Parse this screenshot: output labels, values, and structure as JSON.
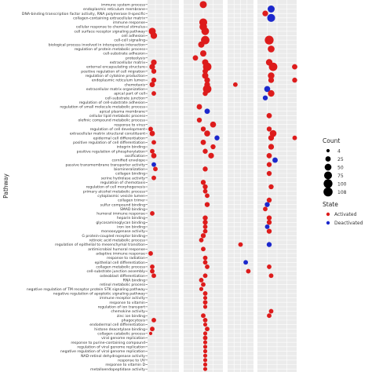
{
  "chart_data": {
    "type": "scatter",
    "ylabel": "Pathway",
    "xlabel": "",
    "grid": true,
    "legend_position": "right",
    "panels": 4,
    "pathways": [
      "immune system process",
      "endoplasmic reticulum membrane",
      "DNA-binding transcription factor activity, RNA polymerase II-specific",
      "collagen-containing extracellular matrix",
      "immune response",
      "cellular response to chemical stimulus",
      "cell surface receptor signaling pathway",
      "cell adhesion",
      "cell-cell signaling",
      "biological process involved in interspecies interaction",
      "regulation of protein metabolic process",
      "cell-substrate adhesion",
      "proteolysis",
      "extracellular matrix",
      "external encapsulating structure",
      "positive regulation of cell migration",
      "regulation of cytokine production",
      "endoplasmic reticulum lumen",
      "chemotaxis",
      "extracellular matrix organization",
      "apical part of cell",
      "cell-substrate junction",
      "regulation of cell-substrate adhesion",
      "regulation of small molecule metabolic process",
      "apical plasma membrane",
      "cellular lipid metabolic process",
      "olefinic compound metabolic process",
      "response to virus",
      "regulation of cell development",
      "extracellular matrix structural constituent",
      "epidermal cell differentiation",
      "positive regulation of cell differentiation",
      "integrin binding",
      "positive regulation of phosphorylation",
      "ossification",
      "cornified envelope",
      "passive transmembrane transporter activity",
      "biomineralization",
      "collagen binding",
      "serine hydrolase activity",
      "regulation of chemotaxis",
      "regulation of cell morphogenesis",
      "primary alcohol metabolic process",
      "cytoplasmic vesicle lumen",
      "collagen trimer",
      "sulfur compound binding",
      "SMAD binding",
      "humoral immune response",
      "heparin binding",
      "glycosaminoglycan binding",
      "iron ion binding",
      "monooxygenase activity",
      "G protein-coupled receptor binding",
      "retinoic acid metabolic process",
      "regulation of epithelial to mesenchymal transition",
      "antimicrobial humoral response",
      "adaptive immune response",
      "response to radiation",
      "epithelial cell differentiation",
      "collagen metabolic process",
      "cell-substrate junction assembly",
      "osteoblast differentiation",
      "RNA binding",
      "retinol metabolic process",
      "negative regulation of TM receptor protein STK signaling pathway",
      "negative regulation of apoptotic signaling pathway",
      "immune receptor activity",
      "response to vitamin",
      "regulation of ion transport",
      "chemokine activity",
      "zinc ion binding",
      "phagocytosis",
      "endodermal cell differentiation",
      "histone deacetylase binding",
      "collagen catabolic process",
      "viral genome replication",
      "response to purine-containing compound",
      "regulation of viral genome replication",
      "negative regulation of viral genome replication",
      "NAD-retinol dehydrogenase activity",
      "response to UV",
      "response to vitamin D",
      "metalloendopeptidase activity"
    ],
    "legend": {
      "count_title": "Count",
      "count_labels": [
        "4",
        "25",
        "50",
        "75",
        "100",
        "108"
      ],
      "count_values": [
        4,
        25,
        50,
        75,
        100,
        108
      ],
      "state_title": "State",
      "state_labels": [
        "Activated",
        "Deactivated"
      ]
    },
    "colors": {
      "Activated": "#dd1c1c",
      "Deactivated": "#1c28cc"
    },
    "points": [
      {
        "row": 0,
        "panel": 1,
        "x": 0.5,
        "count": 55,
        "state": "Activated"
      },
      {
        "row": 1,
        "panel": 3,
        "x": 0.35,
        "count": 55,
        "state": "Deactivated"
      },
      {
        "row": 2,
        "panel": 3,
        "x": 0.2,
        "count": 30,
        "state": "Activated"
      },
      {
        "row": 3,
        "panel": 3,
        "x": 0.35,
        "count": 75,
        "state": "Deactivated"
      },
      {
        "row": 4,
        "panel": 1,
        "x": 0.5,
        "count": 75,
        "state": "Activated"
      },
      {
        "row": 5,
        "panel": 1,
        "x": 0.5,
        "count": 65,
        "state": "Activated"
      },
      {
        "row": 6,
        "panel": 0,
        "x": 0.15,
        "count": 55,
        "state": "Activated"
      },
      {
        "row": 6,
        "panel": 1,
        "x": 0.55,
        "count": 70,
        "state": "Activated"
      },
      {
        "row": 7,
        "panel": 0,
        "x": 0.2,
        "count": 45,
        "state": "Activated"
      },
      {
        "row": 8,
        "panel": 1,
        "x": 0.55,
        "count": 90,
        "state": "Activated"
      },
      {
        "row": 8,
        "panel": 3,
        "x": 0.3,
        "count": 100,
        "state": "Activated"
      },
      {
        "row": 9,
        "panel": 1,
        "x": 0.45,
        "count": 40,
        "state": "Activated"
      },
      {
        "row": 10,
        "panel": 3,
        "x": 0.35,
        "count": 50,
        "state": "Activated"
      },
      {
        "row": 11,
        "panel": 1,
        "x": 0.5,
        "count": 40,
        "state": "Activated"
      },
      {
        "row": 12,
        "panel": 1,
        "x": 0.3,
        "count": 25,
        "state": "Activated"
      },
      {
        "row": 13,
        "panel": 0,
        "x": 0.2,
        "count": 30,
        "state": "Activated"
      },
      {
        "row": 13,
        "panel": 1,
        "x": 0.55,
        "count": 40,
        "state": "Activated"
      },
      {
        "row": 13,
        "panel": 3,
        "x": 0.3,
        "count": 45,
        "state": "Activated"
      },
      {
        "row": 14,
        "panel": 0,
        "x": 0.15,
        "count": 30,
        "state": "Activated"
      },
      {
        "row": 14,
        "panel": 1,
        "x": 0.6,
        "count": 90,
        "state": "Activated"
      },
      {
        "row": 14,
        "panel": 3,
        "x": 0.4,
        "count": 90,
        "state": "Activated"
      },
      {
        "row": 14,
        "panel": 3,
        "x": 0.95,
        "count": 25,
        "state": "Activated"
      },
      {
        "row": 15,
        "panel": 0,
        "x": 0.2,
        "count": 20,
        "state": "Activated"
      },
      {
        "row": 15,
        "panel": 1,
        "x": 0.55,
        "count": 25,
        "state": "Activated"
      },
      {
        "row": 16,
        "panel": 1,
        "x": 0.55,
        "count": 40,
        "state": "Activated"
      },
      {
        "row": 16,
        "panel": 3,
        "x": 0.35,
        "count": 45,
        "state": "Activated"
      },
      {
        "row": 17,
        "panel": 0,
        "x": 0.2,
        "count": 20,
        "state": "Activated"
      },
      {
        "row": 17,
        "panel": 1,
        "x": 0.6,
        "count": 30,
        "state": "Activated"
      },
      {
        "row": 17,
        "panel": 3,
        "x": 0.35,
        "count": 30,
        "state": "Activated"
      },
      {
        "row": 17,
        "panel": 3,
        "x": 0.95,
        "count": 20,
        "state": "Activated"
      },
      {
        "row": 18,
        "panel": 0,
        "x": 0.15,
        "count": 25,
        "state": "Activated"
      },
      {
        "row": 18,
        "panel": 1,
        "x": 0.6,
        "count": 30,
        "state": "Activated"
      },
      {
        "row": 18,
        "panel": 2,
        "x": 0.3,
        "count": 15,
        "state": "Activated"
      },
      {
        "row": 19,
        "panel": 1,
        "x": 0.6,
        "count": 90,
        "state": "Activated"
      },
      {
        "row": 19,
        "panel": 3,
        "x": 0.25,
        "count": 35,
        "state": "Deactivated"
      },
      {
        "row": 20,
        "panel": 0,
        "x": 0.2,
        "count": 15,
        "state": "Activated"
      },
      {
        "row": 20,
        "panel": 1,
        "x": 0.55,
        "count": 20,
        "state": "Activated"
      },
      {
        "row": 20,
        "panel": 3,
        "x": 0.35,
        "count": 45,
        "state": "Activated"
      },
      {
        "row": 21,
        "panel": 3,
        "x": 0.2,
        "count": 20,
        "state": "Deactivated"
      },
      {
        "row": 23,
        "panel": 1,
        "x": 0.4,
        "count": 25,
        "state": "Activated"
      },
      {
        "row": 24,
        "panel": 1,
        "x": 0.6,
        "count": 25,
        "state": "Deactivated"
      },
      {
        "row": 25,
        "panel": 3,
        "x": 0.3,
        "count": 25,
        "state": "Activated"
      },
      {
        "row": 26,
        "panel": 1,
        "x": 0.4,
        "count": 20,
        "state": "Activated"
      },
      {
        "row": 27,
        "panel": 1,
        "x": 0.75,
        "count": 35,
        "state": "Activated"
      },
      {
        "row": 28,
        "panel": 0,
        "x": 0.1,
        "count": 15,
        "state": "Activated"
      },
      {
        "row": 28,
        "panel": 1,
        "x": 0.5,
        "count": 20,
        "state": "Activated"
      },
      {
        "row": 28,
        "panel": 3,
        "x": 0.3,
        "count": 20,
        "state": "Activated"
      },
      {
        "row": 29,
        "panel": 0,
        "x": 0.15,
        "count": 25,
        "state": "Activated"
      },
      {
        "row": 29,
        "panel": 1,
        "x": 0.6,
        "count": 35,
        "state": "Activated"
      },
      {
        "row": 29,
        "panel": 3,
        "x": 0.4,
        "count": 50,
        "state": "Activated"
      },
      {
        "row": 30,
        "panel": 1,
        "x": 0.85,
        "count": 20,
        "state": "Deactivated"
      },
      {
        "row": 30,
        "panel": 3,
        "x": 0.35,
        "count": 30,
        "state": "Activated"
      },
      {
        "row": 30,
        "panel": 3,
        "x": 0.95,
        "count": 15,
        "state": "Activated"
      },
      {
        "row": 31,
        "panel": 0,
        "x": 0.2,
        "count": 15,
        "state": "Activated"
      },
      {
        "row": 31,
        "panel": 1,
        "x": 0.5,
        "count": 25,
        "state": "Activated"
      },
      {
        "row": 32,
        "panel": 1,
        "x": 0.75,
        "count": 20,
        "state": "Activated"
      },
      {
        "row": 32,
        "panel": 3,
        "x": 0.35,
        "count": 30,
        "state": "Activated"
      },
      {
        "row": 33,
        "panel": 0,
        "x": 0.15,
        "count": 15,
        "state": "Activated"
      },
      {
        "row": 33,
        "panel": 1,
        "x": 0.55,
        "count": 20,
        "state": "Activated"
      },
      {
        "row": 34,
        "panel": 0,
        "x": 0.2,
        "count": 25,
        "state": "Activated"
      },
      {
        "row": 34,
        "panel": 1,
        "x": 0.7,
        "count": 30,
        "state": "Activated"
      },
      {
        "row": 34,
        "panel": 3,
        "x": 0.3,
        "count": 25,
        "state": "Activated"
      },
      {
        "row": 35,
        "panel": 3,
        "x": 0.45,
        "count": 25,
        "state": "Deactivated"
      },
      {
        "row": 36,
        "panel": 0,
        "x": 0.2,
        "count": 15,
        "state": "Deactivated"
      },
      {
        "row": 36,
        "panel": 3,
        "x": 0.3,
        "count": 20,
        "state": "Activated"
      },
      {
        "row": 37,
        "panel": 0,
        "x": 0.25,
        "count": 15,
        "state": "Activated"
      },
      {
        "row": 37,
        "panel": 1,
        "x": 0.55,
        "count": 20,
        "state": "Activated"
      },
      {
        "row": 38,
        "panel": 3,
        "x": 0.3,
        "count": 20,
        "state": "Activated"
      },
      {
        "row": 39,
        "panel": 0,
        "x": 0.2,
        "count": 15,
        "state": "Activated"
      },
      {
        "row": 40,
        "panel": 1,
        "x": 0.5,
        "count": 20,
        "state": "Activated"
      },
      {
        "row": 41,
        "panel": 1,
        "x": 0.55,
        "count": 20,
        "state": "Activated"
      },
      {
        "row": 41,
        "panel": 3,
        "x": 0.35,
        "count": 20,
        "state": "Activated"
      },
      {
        "row": 42,
        "panel": 1,
        "x": 0.55,
        "count": 15,
        "state": "Activated"
      },
      {
        "row": 43,
        "panel": 1,
        "x": 0.6,
        "count": 15,
        "state": "Activated"
      },
      {
        "row": 44,
        "panel": 3,
        "x": 0.3,
        "count": 20,
        "state": "Activated"
      },
      {
        "row": 45,
        "panel": 1,
        "x": 0.6,
        "count": 20,
        "state": "Activated"
      },
      {
        "row": 45,
        "panel": 3,
        "x": 0.25,
        "count": 20,
        "state": "Deactivated"
      },
      {
        "row": 46,
        "panel": 3,
        "x": 0.2,
        "count": 15,
        "state": "Activated"
      },
      {
        "row": 47,
        "panel": 0,
        "x": 0.15,
        "count": 15,
        "state": "Activated"
      },
      {
        "row": 48,
        "panel": 1,
        "x": 0.55,
        "count": 20,
        "state": "Activated"
      },
      {
        "row": 48,
        "panel": 3,
        "x": 0.3,
        "count": 20,
        "state": "Activated"
      },
      {
        "row": 49,
        "panel": 1,
        "x": 0.55,
        "count": 20,
        "state": "Activated"
      },
      {
        "row": 49,
        "panel": 3,
        "x": 0.3,
        "count": 20,
        "state": "Activated"
      },
      {
        "row": 50,
        "panel": 1,
        "x": 0.55,
        "count": 15,
        "state": "Activated"
      },
      {
        "row": 50,
        "panel": 3,
        "x": 0.25,
        "count": 15,
        "state": "Deactivated"
      },
      {
        "row": 51,
        "panel": 1,
        "x": 0.55,
        "count": 15,
        "state": "Activated"
      },
      {
        "row": 51,
        "panel": 3,
        "x": 0.3,
        "count": 20,
        "state": "Activated"
      },
      {
        "row": 52,
        "panel": 1,
        "x": 0.5,
        "count": 20,
        "state": "Activated"
      },
      {
        "row": 53,
        "panel": 1,
        "x": 0.45,
        "count": 15,
        "state": "Activated"
      },
      {
        "row": 54,
        "panel": 2,
        "x": 0.5,
        "count": 15,
        "state": "Activated"
      },
      {
        "row": 54,
        "panel": 3,
        "x": 0.3,
        "count": 20,
        "state": "Deactivated"
      },
      {
        "row": 55,
        "panel": 1,
        "x": 0.5,
        "count": 15,
        "state": "Activated"
      },
      {
        "row": 56,
        "panel": 0,
        "x": 0.1,
        "count": 15,
        "state": "Activated"
      },
      {
        "row": 57,
        "panel": 1,
        "x": 0.55,
        "count": 15,
        "state": "Activated"
      },
      {
        "row": 58,
        "panel": 1,
        "x": 0.55,
        "count": 15,
        "state": "Activated"
      },
      {
        "row": 58,
        "panel": 2,
        "x": 0.7,
        "count": 15,
        "state": "Deactivated"
      },
      {
        "row": 59,
        "panel": 0,
        "x": 0.15,
        "count": 15,
        "state": "Activated"
      },
      {
        "row": 59,
        "panel": 1,
        "x": 0.6,
        "count": 15,
        "state": "Activated"
      },
      {
        "row": 59,
        "panel": 3,
        "x": 0.3,
        "count": 15,
        "state": "Activated"
      },
      {
        "row": 60,
        "panel": 0,
        "x": 0.15,
        "count": 15,
        "state": "Activated"
      },
      {
        "row": 60,
        "panel": 2,
        "x": 0.8,
        "count": 15,
        "state": "Activated"
      },
      {
        "row": 61,
        "panel": 0,
        "x": 0.2,
        "count": 15,
        "state": "Activated"
      },
      {
        "row": 61,
        "panel": 1,
        "x": 0.55,
        "count": 15,
        "state": "Activated"
      },
      {
        "row": 61,
        "panel": 3,
        "x": 0.35,
        "count": 15,
        "state": "Activated"
      },
      {
        "row": 62,
        "panel": 1,
        "x": 0.45,
        "count": 15,
        "state": "Activated"
      },
      {
        "row": 63,
        "panel": 1,
        "x": 0.5,
        "count": 15,
        "state": "Activated"
      },
      {
        "row": 64,
        "panel": 1,
        "x": 0.45,
        "count": 10,
        "state": "Activated"
      },
      {
        "row": 65,
        "panel": 1,
        "x": 0.55,
        "count": 15,
        "state": "Activated"
      },
      {
        "row": 66,
        "panel": 1,
        "x": 0.55,
        "count": 10,
        "state": "Activated"
      },
      {
        "row": 67,
        "panel": 1,
        "x": 0.55,
        "count": 15,
        "state": "Activated"
      },
      {
        "row": 68,
        "panel": 1,
        "x": 0.55,
        "count": 10,
        "state": "Activated"
      },
      {
        "row": 69,
        "panel": 3,
        "x": 0.35,
        "count": 15,
        "state": "Activated"
      },
      {
        "row": 70,
        "panel": 1,
        "x": 0.5,
        "count": 15,
        "state": "Activated"
      },
      {
        "row": 70,
        "panel": 3,
        "x": 0.3,
        "count": 15,
        "state": "Activated"
      },
      {
        "row": 71,
        "panel": 0,
        "x": 0.2,
        "count": 15,
        "state": "Activated"
      },
      {
        "row": 71,
        "panel": 1,
        "x": 0.55,
        "count": 15,
        "state": "Activated"
      },
      {
        "row": 72,
        "panel": 1,
        "x": 0.55,
        "count": 10,
        "state": "Activated"
      },
      {
        "row": 73,
        "panel": 0,
        "x": 0.15,
        "count": 15,
        "state": "Activated"
      },
      {
        "row": 73,
        "panel": 1,
        "x": 0.6,
        "count": 15,
        "state": "Activated"
      },
      {
        "row": 74,
        "panel": 0,
        "x": 0.1,
        "count": 4,
        "state": "Activated"
      },
      {
        "row": 74,
        "panel": 1,
        "x": 0.55,
        "count": 10,
        "state": "Activated"
      },
      {
        "row": 75,
        "panel": 1,
        "x": 0.55,
        "count": 15,
        "state": "Activated"
      },
      {
        "row": 76,
        "panel": 1,
        "x": 0.55,
        "count": 10,
        "state": "Activated"
      },
      {
        "row": 77,
        "panel": 1,
        "x": 0.55,
        "count": 10,
        "state": "Activated"
      },
      {
        "row": 78,
        "panel": 1,
        "x": 0.55,
        "count": 10,
        "state": "Activated"
      },
      {
        "row": 79,
        "panel": 1,
        "x": 0.55,
        "count": 10,
        "state": "Activated"
      },
      {
        "row": 80,
        "panel": 1,
        "x": 0.55,
        "count": 10,
        "state": "Activated"
      },
      {
        "row": 81,
        "panel": 1,
        "x": 0.55,
        "count": 10,
        "state": "Activated"
      },
      {
        "row": 82,
        "panel": 1,
        "x": 0.55,
        "count": 10,
        "state": "Activated"
      }
    ]
  }
}
